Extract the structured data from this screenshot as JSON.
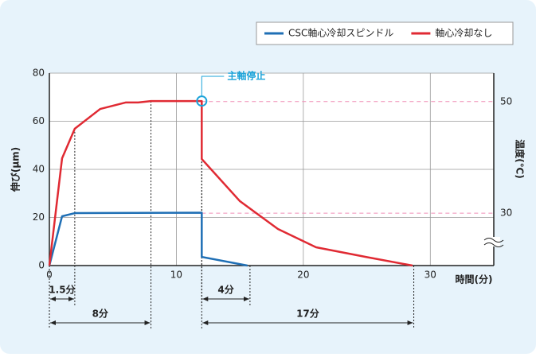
{
  "chart_data": {
    "type": "line",
    "ylabel": "伸び(μm)",
    "y2label": "温度(℃)",
    "xlabel": "時間(分)",
    "xlim": [
      0,
      35
    ],
    "xticks": [
      0,
      10,
      20,
      30
    ],
    "ylim": [
      0,
      80
    ],
    "yticks": [
      0,
      20,
      40,
      60,
      80
    ],
    "y2lim": [
      20.6,
      55.1
    ],
    "y2ticks": [
      30,
      50
    ],
    "grid": true,
    "legend": "top-right",
    "series": [
      {
        "name": "CSC軸心冷却スピンドル",
        "color": "#1f6fb5",
        "x": [
          0,
          1,
          2,
          12,
          12,
          15.6
        ],
        "values": [
          0,
          20.5,
          21.8,
          22,
          3.6,
          0
        ]
      },
      {
        "name": "軸心冷却なし",
        "color": "#e02a33",
        "x": [
          0,
          1,
          2,
          4,
          6,
          7,
          8,
          10,
          12,
          12,
          15,
          18,
          21,
          25,
          28.6
        ],
        "values": [
          0,
          44.6,
          56.9,
          65.1,
          67.8,
          67.8,
          68.4,
          68.4,
          68.4,
          44.3,
          26.8,
          15.2,
          7.6,
          3.5,
          0
        ]
      }
    ],
    "annotations": [
      {
        "text": "主軸停止",
        "x": 12,
        "y": 68.4
      }
    ],
    "spans": [
      {
        "label": "1.5分",
        "from": 0,
        "to": 2
      },
      {
        "label": "4分",
        "from": 12,
        "to": 15.8
      },
      {
        "label": "8分",
        "from": 0,
        "to": 8
      },
      {
        "label": "17分",
        "from": 12,
        "to": 28.7
      }
    ]
  }
}
